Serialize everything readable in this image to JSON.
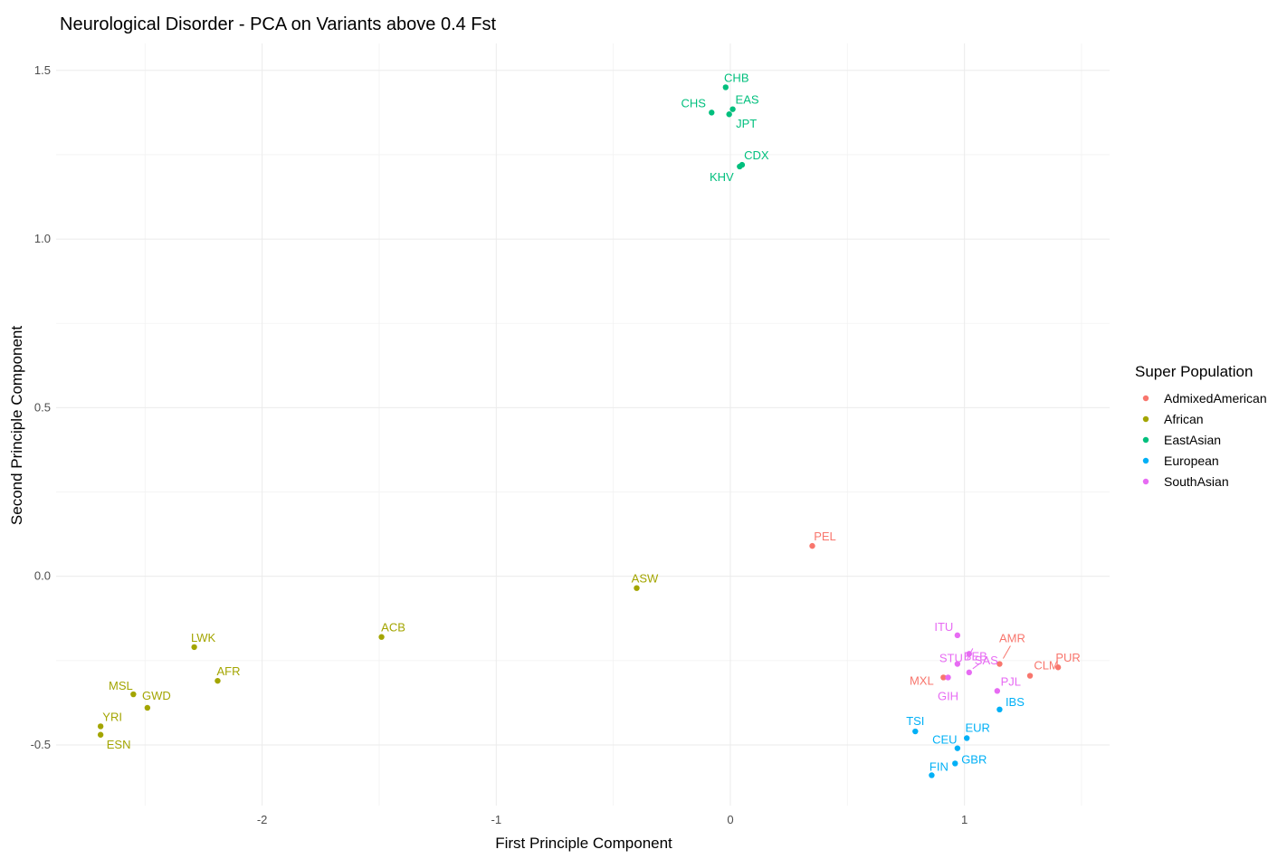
{
  "chart_data": {
    "type": "scatter",
    "title": "Neurological Disorder - PCA on Variants above 0.4 Fst",
    "xlabel": "First Principle Component",
    "ylabel": "Second Principle Component",
    "xlim": [
      -2.88,
      1.62
    ],
    "ylim": [
      -0.68,
      1.58
    ],
    "xticks": [
      -2,
      -1,
      0,
      1
    ],
    "yticks": [
      -0.5,
      0.0,
      0.5,
      1.0,
      1.5
    ],
    "xtick_labels": [
      "-2",
      "-1",
      "0",
      "1"
    ],
    "ytick_labels": [
      "-0.5",
      "0.0",
      "0.5",
      "1.0",
      "1.5"
    ],
    "grid": true,
    "legend": {
      "title": "Super Population",
      "placement": "right",
      "entries": [
        {
          "name": "AdmixedAmerican",
          "color": "#F8766D"
        },
        {
          "name": "African",
          "color": "#A3A500"
        },
        {
          "name": "EastAsian",
          "color": "#00BF7D"
        },
        {
          "name": "European",
          "color": "#00B0F6"
        },
        {
          "name": "SouthAsian",
          "color": "#E76BF3"
        }
      ]
    },
    "points": [
      {
        "label": "CHB",
        "group": "EastAsian",
        "x": -0.02,
        "y": 1.45
      },
      {
        "label": "EAS",
        "group": "EastAsian",
        "x": 0.01,
        "y": 1.385
      },
      {
        "label": "CHS",
        "group": "EastAsian",
        "x": -0.08,
        "y": 1.375
      },
      {
        "label": "JPT",
        "group": "EastAsian",
        "x": -0.005,
        "y": 1.37
      },
      {
        "label": "CDX",
        "group": "EastAsian",
        "x": 0.05,
        "y": 1.22
      },
      {
        "label": "KHV",
        "group": "EastAsian",
        "x": 0.04,
        "y": 1.215
      },
      {
        "label": "PEL",
        "group": "AdmixedAmerican",
        "x": 0.35,
        "y": 0.09
      },
      {
        "label": "AMR",
        "group": "AdmixedAmerican",
        "x": 1.15,
        "y": -0.26
      },
      {
        "label": "CLM",
        "group": "AdmixedAmerican",
        "x": 1.28,
        "y": -0.295
      },
      {
        "label": "PUR",
        "group": "AdmixedAmerican",
        "x": 1.4,
        "y": -0.27
      },
      {
        "label": "MXL",
        "group": "AdmixedAmerican",
        "x": 0.91,
        "y": -0.3
      },
      {
        "label": "ASW",
        "group": "African",
        "x": -0.4,
        "y": -0.035
      },
      {
        "label": "ACB",
        "group": "African",
        "x": -1.49,
        "y": -0.18
      },
      {
        "label": "LWK",
        "group": "African",
        "x": -2.29,
        "y": -0.21
      },
      {
        "label": "AFR",
        "group": "African",
        "x": -2.19,
        "y": -0.31
      },
      {
        "label": "MSL",
        "group": "African",
        "x": -2.55,
        "y": -0.35
      },
      {
        "label": "GWD",
        "group": "African",
        "x": -2.49,
        "y": -0.39
      },
      {
        "label": "YRI",
        "group": "African",
        "x": -2.69,
        "y": -0.445
      },
      {
        "label": "ESN",
        "group": "African",
        "x": -2.69,
        "y": -0.47
      },
      {
        "label": "ITU",
        "group": "SouthAsian",
        "x": 0.97,
        "y": -0.175
      },
      {
        "label": "BEB",
        "group": "SouthAsian",
        "x": 1.02,
        "y": -0.23
      },
      {
        "label": "STU",
        "group": "SouthAsian",
        "x": 0.97,
        "y": -0.26
      },
      {
        "label": "SAS",
        "group": "SouthAsian",
        "x": 1.02,
        "y": -0.285
      },
      {
        "label": "GIH",
        "group": "SouthAsian",
        "x": 0.93,
        "y": -0.3
      },
      {
        "label": "PJL",
        "group": "SouthAsian",
        "x": 1.14,
        "y": -0.34
      },
      {
        "label": "IBS",
        "group": "European",
        "x": 1.15,
        "y": -0.395
      },
      {
        "label": "TSI",
        "group": "European",
        "x": 0.79,
        "y": -0.46
      },
      {
        "label": "EUR",
        "group": "European",
        "x": 1.01,
        "y": -0.48
      },
      {
        "label": "CEU",
        "group": "European",
        "x": 0.97,
        "y": -0.51
      },
      {
        "label": "GBR",
        "group": "European",
        "x": 0.96,
        "y": -0.555
      },
      {
        "label": "FIN",
        "group": "European",
        "x": 0.86,
        "y": -0.59
      }
    ]
  }
}
